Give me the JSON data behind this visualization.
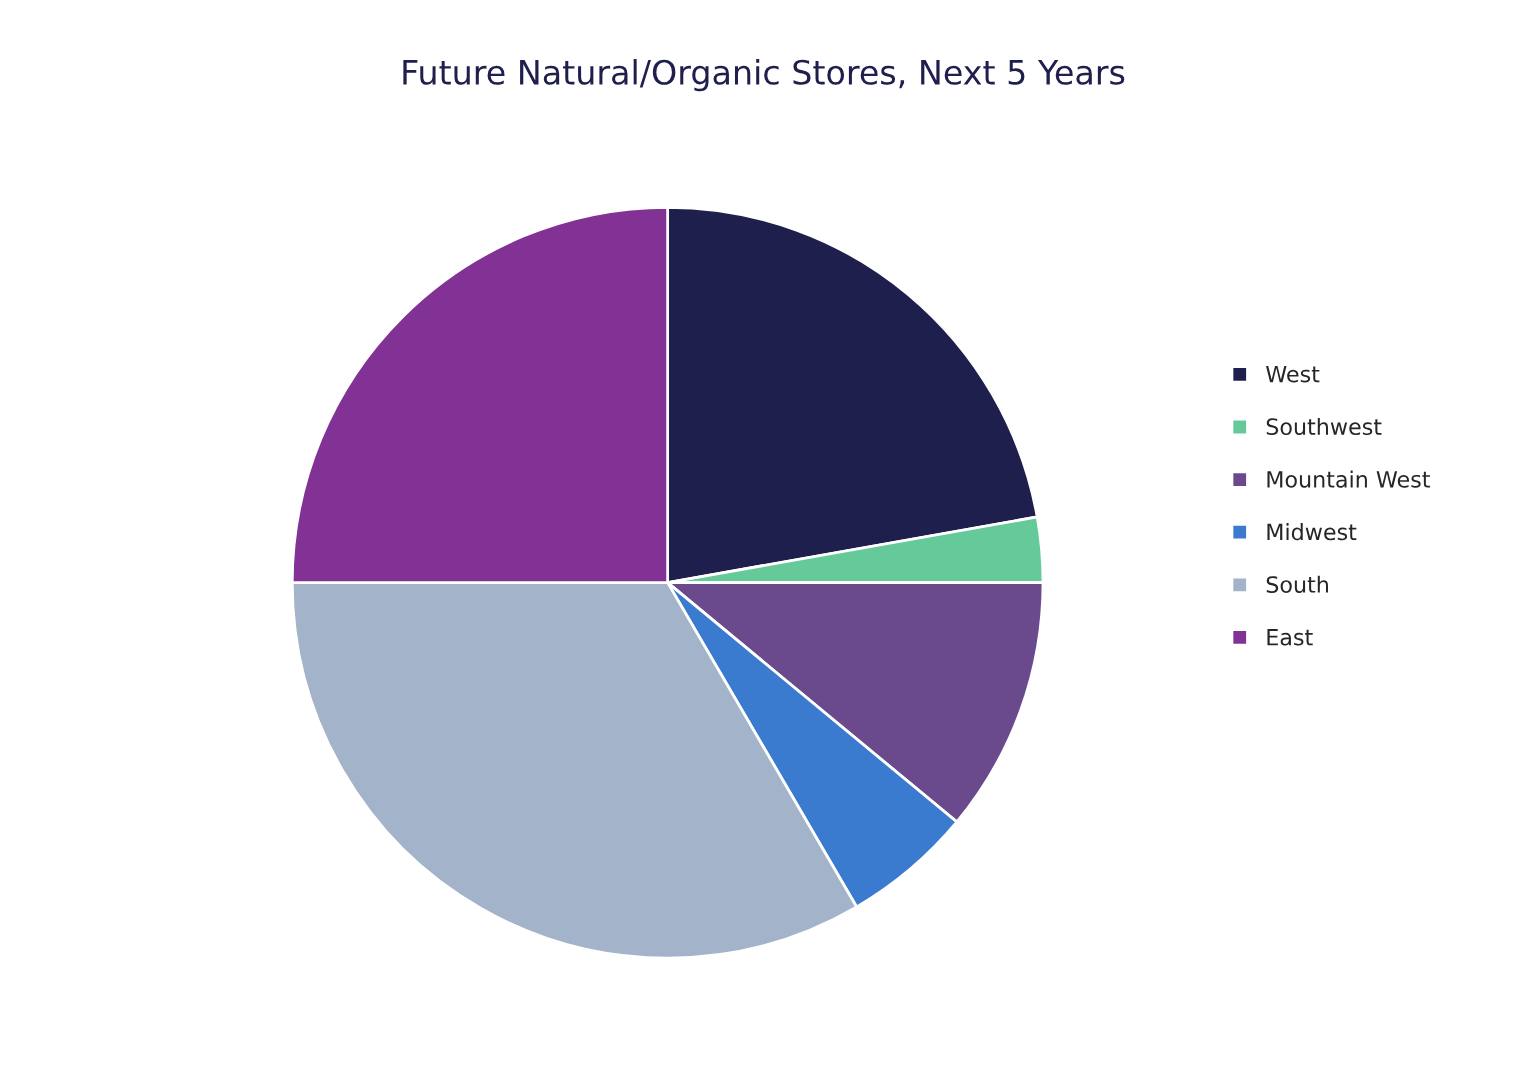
{
  "chart_data": {
    "type": "pie",
    "title": "Future Natural/Organic Stores, Next 5 Years",
    "categories": [
      "West",
      "Southwest",
      "Mountain West",
      "Midwest",
      "South",
      "East"
    ],
    "values": [
      22.2,
      2.8,
      11,
      5.6,
      33.4,
      25
    ],
    "colors": [
      "#1f1f4e",
      "#66c999",
      "#6a4a8c",
      "#3a7bd0",
      "#a3b3c9",
      "#823294"
    ],
    "legend": "right"
  }
}
